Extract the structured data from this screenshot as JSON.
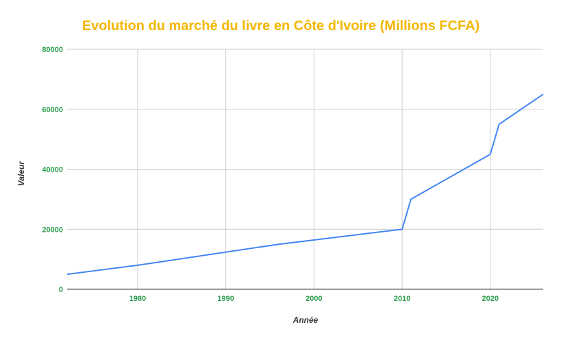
{
  "chart_data": {
    "type": "line",
    "title": "Evolution du marché du livre en Côte d'Ivoire (Millions FCFA)",
    "xlabel": "Année",
    "ylabel": "Valeur",
    "xlim": [
      1972,
      2026
    ],
    "ylim": [
      0,
      80000
    ],
    "x_ticks": [
      "1980",
      "1990",
      "2000",
      "2010",
      "2020"
    ],
    "y_ticks": [
      "0",
      "20000",
      "40000",
      "60000",
      "80000"
    ],
    "grid": true,
    "legend": "none",
    "series": [
      {
        "points": [
          {
            "x": 1972,
            "y": 5000
          },
          {
            "x": 1980,
            "y": 8000
          },
          {
            "x": 1996,
            "y": 15000
          },
          {
            "x": 2010,
            "y": 20000
          },
          {
            "x": 2011,
            "y": 30000
          },
          {
            "x": 2020,
            "y": 45000
          },
          {
            "x": 2021,
            "y": 55000
          },
          {
            "x": 2026,
            "y": 65000
          }
        ]
      }
    ],
    "colors": {
      "title": "#f2b705",
      "ticks": "#2e9e4f",
      "line": "#4285f4",
      "grid": "#cccccc"
    }
  }
}
